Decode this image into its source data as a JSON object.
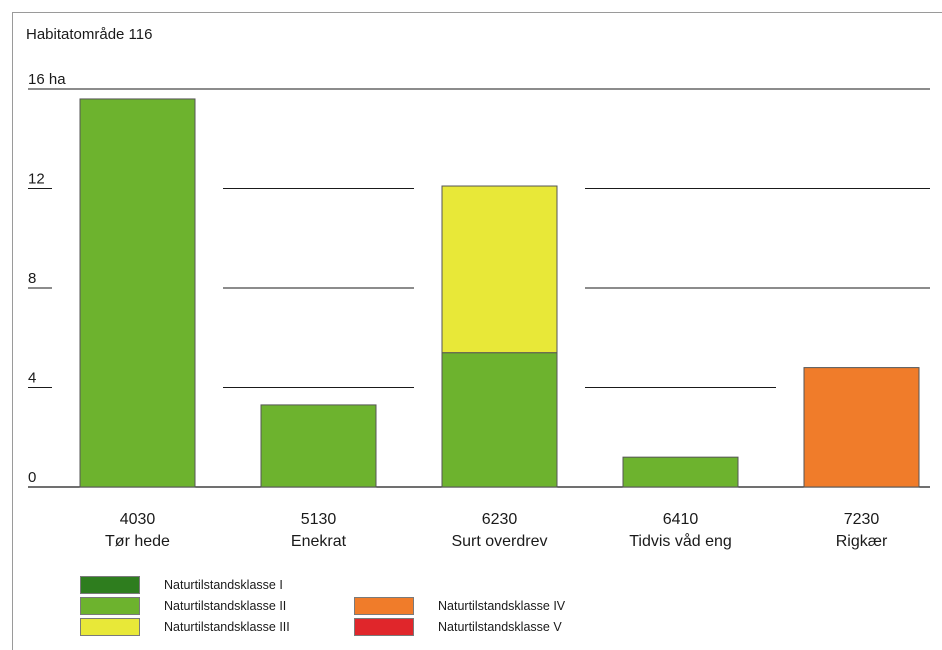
{
  "chart_data": {
    "type": "bar",
    "stacked": true,
    "title": "Habitatområde 116",
    "y_unit": "ha",
    "ylim": [
      0,
      16
    ],
    "yticks": [
      0,
      4,
      8,
      12,
      16
    ],
    "ytick_labels": [
      "0",
      "4",
      "8",
      "12",
      "16 ha"
    ],
    "grid": true,
    "categories": [
      {
        "code": "4030",
        "name": "Tør hede"
      },
      {
        "code": "5130",
        "name": "Enekrat"
      },
      {
        "code": "6230",
        "name": "Surt overdrev"
      },
      {
        "code": "6410",
        "name": "Tidvis våd eng"
      },
      {
        "code": "7230",
        "name": "Rigkær"
      }
    ],
    "series": [
      {
        "name": "Naturtilstandsklasse I",
        "color": "#2e7d1e",
        "values": [
          0,
          0,
          0,
          0,
          0
        ]
      },
      {
        "name": "Naturtilstandsklasse II",
        "color": "#6db32e",
        "values": [
          15.6,
          3.3,
          5.4,
          1.2,
          0
        ]
      },
      {
        "name": "Naturtilstandsklasse III",
        "color": "#e8e838",
        "values": [
          0,
          0,
          6.7,
          0,
          0
        ]
      },
      {
        "name": "Naturtilstandsklasse IV",
        "color": "#f07c2a",
        "values": [
          0,
          0,
          0,
          0,
          4.8
        ]
      },
      {
        "name": "Naturtilstandsklasse V",
        "color": "#e0262b",
        "values": [
          0,
          0,
          0,
          0,
          0
        ]
      }
    ],
    "legend_position": "bottom-left"
  }
}
